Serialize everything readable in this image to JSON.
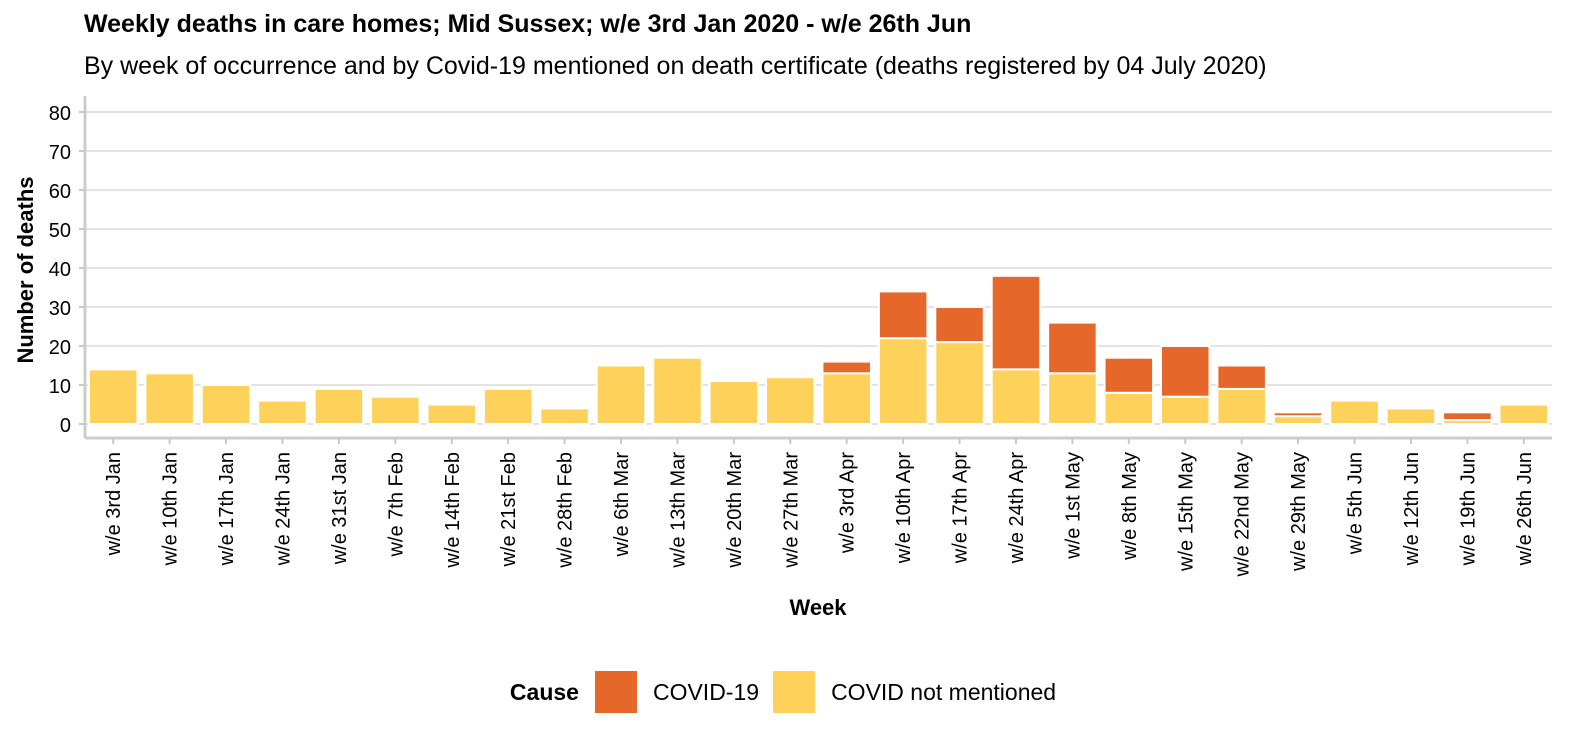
{
  "title": "Weekly deaths in care homes; Mid Sussex; w/e 3rd Jan 2020 - w/e 26th Jun",
  "subtitle": "By week of occurrence and by Covid-19 mentioned on death certificate (deaths registered by 04 July 2020)",
  "legend": {
    "title": "Cause",
    "items": [
      {
        "label": "COVID-19",
        "color": "#E5682A"
      },
      {
        "label": "COVID not mentioned",
        "color": "#FDD15A"
      }
    ]
  },
  "chart_data": {
    "type": "bar",
    "stacked": true,
    "xlabel": "Week",
    "ylabel": "Number of deaths",
    "ylim": [
      0,
      80
    ],
    "yticks": [
      0,
      10,
      20,
      30,
      40,
      50,
      60,
      70,
      80
    ],
    "grid": true,
    "legend_position": "bottom",
    "categories": [
      "w/e 3rd Jan",
      "w/e 10th Jan",
      "w/e 17th Jan",
      "w/e 24th Jan",
      "w/e 31st Jan",
      "w/e 7th Feb",
      "w/e 14th Feb",
      "w/e 21st Feb",
      "w/e 28th Feb",
      "w/e 6th Mar",
      "w/e 13th Mar",
      "w/e 20th Mar",
      "w/e 27th Mar",
      "w/e 3rd Apr",
      "w/e 10th Apr",
      "w/e 17th Apr",
      "w/e 24th Apr",
      "w/e 1st May",
      "w/e 8th May",
      "w/e 15th May",
      "w/e 22nd May",
      "w/e 29th May",
      "w/e 5th Jun",
      "w/e 12th Jun",
      "w/e 19th Jun",
      "w/e 26th Jun"
    ],
    "series": [
      {
        "name": "COVID not mentioned",
        "color": "#FDD15A",
        "values": [
          14,
          13,
          10,
          6,
          9,
          7,
          5,
          9,
          4,
          15,
          17,
          11,
          12,
          13,
          22,
          21,
          14,
          13,
          8,
          7,
          9,
          2,
          6,
          4,
          1,
          5
        ]
      },
      {
        "name": "COVID-19",
        "color": "#E5682A",
        "values": [
          0,
          0,
          0,
          0,
          0,
          0,
          0,
          0,
          0,
          0,
          0,
          0,
          0,
          3,
          12,
          9,
          24,
          13,
          9,
          13,
          6,
          1,
          0,
          0,
          2,
          0
        ]
      }
    ]
  }
}
